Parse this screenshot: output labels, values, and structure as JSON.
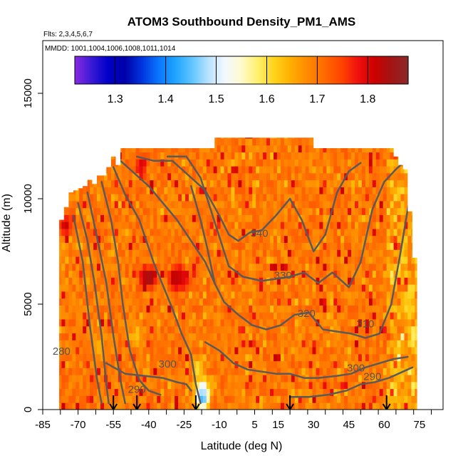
{
  "chart_data": {
    "type": "heatmap",
    "title": "ATOM3 Southbound Density_PM1_AMS",
    "subtitle_flights": "Flts: 2,3,4,5,6,7",
    "subtitle_dates": "MMDD: 1001,1004,1006,1008,1011,1014",
    "xlabel": "Latitude (deg N)",
    "ylabel": "Altitude (m)",
    "xlim": [
      -85,
      85
    ],
    "ylim": [
      0,
      17500
    ],
    "x_tick_labels": [
      -85,
      -70,
      -55,
      -40,
      -25,
      -10,
      5,
      15,
      30,
      45,
      60,
      75
    ],
    "x_minor_ticks": [
      -85,
      -77.5,
      -70,
      -62.5,
      -55,
      -47.5,
      -40,
      -32.5,
      -25,
      -17.5,
      -10,
      -2.5,
      5,
      12.5,
      20,
      27.5,
      35,
      42.5,
      50,
      57.5,
      65,
      72.5,
      80
    ],
    "y_ticks": [
      0,
      5000,
      10000,
      15000
    ],
    "colorbar": {
      "min": 1.22,
      "max": 1.88,
      "ticks": [
        1.3,
        1.4,
        1.5,
        1.6,
        1.7,
        1.8
      ],
      "colors": [
        "#8a2be2",
        "#3a1ad6",
        "#0000c8",
        "#0000a8",
        "#0033dd",
        "#0a74ff",
        "#1ea3ff",
        "#5cc4ff",
        "#b9e2ff",
        "#f2f8ff",
        "#fffacd",
        "#ffef6a",
        "#ffd21a",
        "#ffad00",
        "#ff8800",
        "#ff6a00",
        "#ff4400",
        "#f01010",
        "#cc0000",
        "#a31515",
        "#8b2a2a"
      ]
    },
    "flight_markers_lat": [
      -55,
      -45,
      -20,
      20,
      61
    ],
    "contour_levels": [
      280,
      290,
      300,
      310,
      320,
      330,
      340
    ],
    "contour_labels": [
      {
        "value": "280",
        "x": -77,
        "y": 2600
      },
      {
        "value": "290",
        "x": -45,
        "y": 800
      },
      {
        "value": "300",
        "x": -32,
        "y": 2000
      },
      {
        "value": "340",
        "x": 7,
        "y": 8200
      },
      {
        "value": "330",
        "x": 17,
        "y": 6200
      },
      {
        "value": "320",
        "x": 27,
        "y": 4400
      },
      {
        "value": "310",
        "x": 52,
        "y": 3900
      },
      {
        "value": "300",
        "x": 48,
        "y": 1800
      },
      {
        "value": "290",
        "x": 55,
        "y": 1400
      }
    ],
    "coverage_columns": [
      {
        "lat": -85,
        "top": 0
      },
      {
        "lat": -82,
        "top": 0
      },
      {
        "lat": -80,
        "top": 0
      },
      {
        "lat": -78,
        "top": 9000
      },
      {
        "lat": -76,
        "top": 9600
      },
      {
        "lat": -74,
        "top": 10300
      },
      {
        "lat": -72,
        "top": 10400
      },
      {
        "lat": -70,
        "top": 10500
      },
      {
        "lat": -68,
        "top": 10600
      },
      {
        "lat": -66,
        "top": 10900
      },
      {
        "lat": -64,
        "top": 10700
      },
      {
        "lat": -62,
        "top": 11100
      },
      {
        "lat": -60,
        "top": 11100
      },
      {
        "lat": -58,
        "top": 11500
      },
      {
        "lat": -56,
        "top": 12000
      },
      {
        "lat": -54,
        "top": 11600
      },
      {
        "lat": -52,
        "top": 12400
      },
      {
        "lat": -50,
        "top": 12400
      },
      {
        "lat": -48,
        "top": 12400
      },
      {
        "lat": -46,
        "top": 12400
      },
      {
        "lat": -44,
        "top": 12400
      },
      {
        "lat": -42,
        "top": 12400
      },
      {
        "lat": -40,
        "top": 12400
      },
      {
        "lat": -38,
        "top": 12400
      },
      {
        "lat": -36,
        "top": 12400
      },
      {
        "lat": -34,
        "top": 12400
      },
      {
        "lat": -32,
        "top": 12400
      },
      {
        "lat": -30,
        "top": 12400
      },
      {
        "lat": -28,
        "top": 12400
      },
      {
        "lat": -26,
        "top": 12400
      },
      {
        "lat": -24,
        "top": 12400
      },
      {
        "lat": -22,
        "top": 12400
      },
      {
        "lat": -20,
        "top": 12400
      },
      {
        "lat": -18,
        "top": 12400
      },
      {
        "lat": -16,
        "top": 12400
      },
      {
        "lat": -14,
        "top": 12400
      },
      {
        "lat": -12,
        "top": 12900
      },
      {
        "lat": -10,
        "top": 12900
      },
      {
        "lat": -8,
        "top": 12900
      },
      {
        "lat": -6,
        "top": 12900
      },
      {
        "lat": -4,
        "top": 12900
      },
      {
        "lat": -2,
        "top": 12900
      },
      {
        "lat": 0,
        "top": 12900
      },
      {
        "lat": 2,
        "top": 12900
      },
      {
        "lat": 4,
        "top": 12900
      },
      {
        "lat": 6,
        "top": 12900
      },
      {
        "lat": 8,
        "top": 12900
      },
      {
        "lat": 10,
        "top": 12900
      },
      {
        "lat": 12,
        "top": 12900
      },
      {
        "lat": 14,
        "top": 12900
      },
      {
        "lat": 16,
        "top": 12900
      },
      {
        "lat": 18,
        "top": 12900
      },
      {
        "lat": 20,
        "top": 12900
      },
      {
        "lat": 22,
        "top": 12900
      },
      {
        "lat": 24,
        "top": 12900
      },
      {
        "lat": 26,
        "top": 12900
      },
      {
        "lat": 28,
        "top": 12900
      },
      {
        "lat": 30,
        "top": 12400
      },
      {
        "lat": 32,
        "top": 12400
      },
      {
        "lat": 34,
        "top": 12400
      },
      {
        "lat": 36,
        "top": 12400
      },
      {
        "lat": 38,
        "top": 12400
      },
      {
        "lat": 40,
        "top": 12400
      },
      {
        "lat": 42,
        "top": 12400
      },
      {
        "lat": 44,
        "top": 12400
      },
      {
        "lat": 46,
        "top": 12400
      },
      {
        "lat": 48,
        "top": 12400
      },
      {
        "lat": 50,
        "top": 12400
      },
      {
        "lat": 52,
        "top": 12400
      },
      {
        "lat": 54,
        "top": 12400
      },
      {
        "lat": 56,
        "top": 12400
      },
      {
        "lat": 58,
        "top": 12400
      },
      {
        "lat": 60,
        "top": 12400
      },
      {
        "lat": 62,
        "top": 12400
      },
      {
        "lat": 64,
        "top": 12000
      },
      {
        "lat": 66,
        "top": 11600
      },
      {
        "lat": 68,
        "top": 11400
      },
      {
        "lat": 70,
        "top": 9400
      },
      {
        "lat": 72,
        "top": 7200
      }
    ],
    "hotspots": [
      {
        "lat": -30,
        "alt": 6100,
        "value": 1.82
      },
      {
        "lat": -28,
        "alt": 6100,
        "value": 1.84
      },
      {
        "lat": -26,
        "alt": 6100,
        "value": 1.8
      },
      {
        "lat": -42,
        "alt": 6100,
        "value": 1.83
      },
      {
        "lat": -40,
        "alt": 6100,
        "value": 1.85
      },
      {
        "lat": -76,
        "alt": 8600,
        "value": 1.82
      },
      {
        "lat": -44,
        "alt": 11400,
        "value": 1.8
      },
      {
        "lat": -18,
        "alt": 400,
        "value": 1.4
      },
      {
        "lat": -18,
        "alt": 800,
        "value": 1.48
      },
      {
        "lat": -20,
        "alt": 1800,
        "value": 1.6
      },
      {
        "lat": -46,
        "alt": 3300,
        "value": 1.63
      },
      {
        "lat": -62,
        "alt": 2800,
        "value": 1.64
      },
      {
        "lat": 70,
        "alt": 4800,
        "value": 1.62
      },
      {
        "lat": 72,
        "alt": 3400,
        "value": 1.58
      }
    ]
  }
}
